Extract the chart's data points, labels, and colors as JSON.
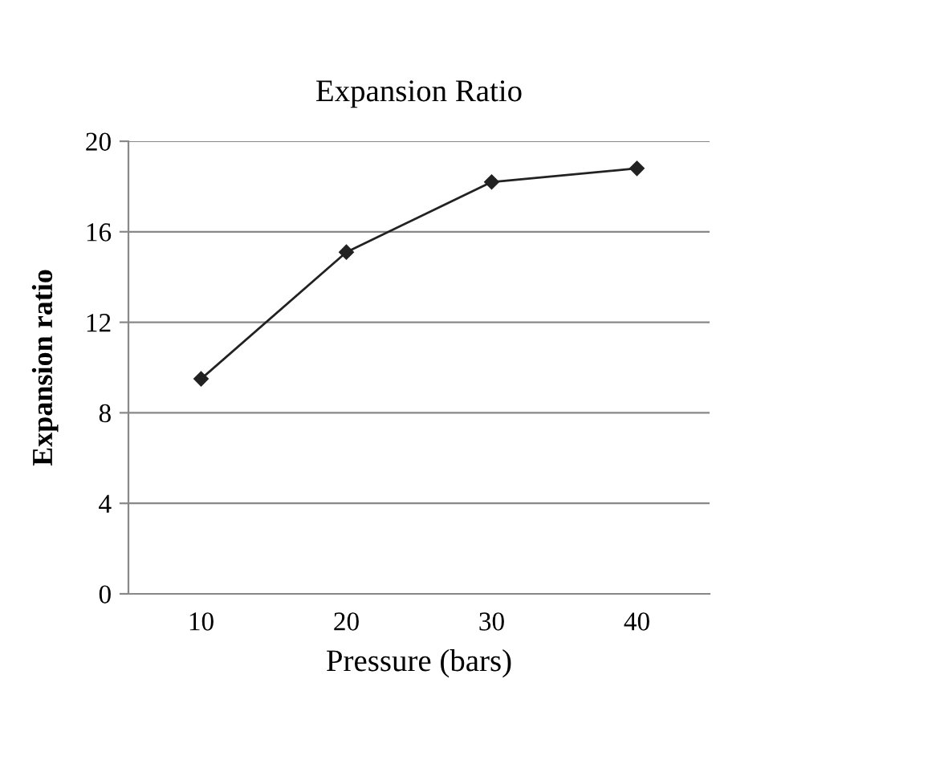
{
  "chart_data": {
    "type": "line",
    "title": "Expansion Ratio",
    "xlabel": "Pressure (bars)",
    "ylabel": "Expansion ratio",
    "categories": [
      "10",
      "20",
      "30",
      "40"
    ],
    "series": [
      {
        "color": "#222222",
        "values": [
          9.5,
          15.1,
          18.2,
          18.8
        ]
      }
    ],
    "ylim": [
      0,
      20
    ],
    "yticks": [
      0,
      4,
      8,
      12,
      16,
      20
    ],
    "grid": "y",
    "marker": "diamond",
    "line_style": "solid"
  }
}
